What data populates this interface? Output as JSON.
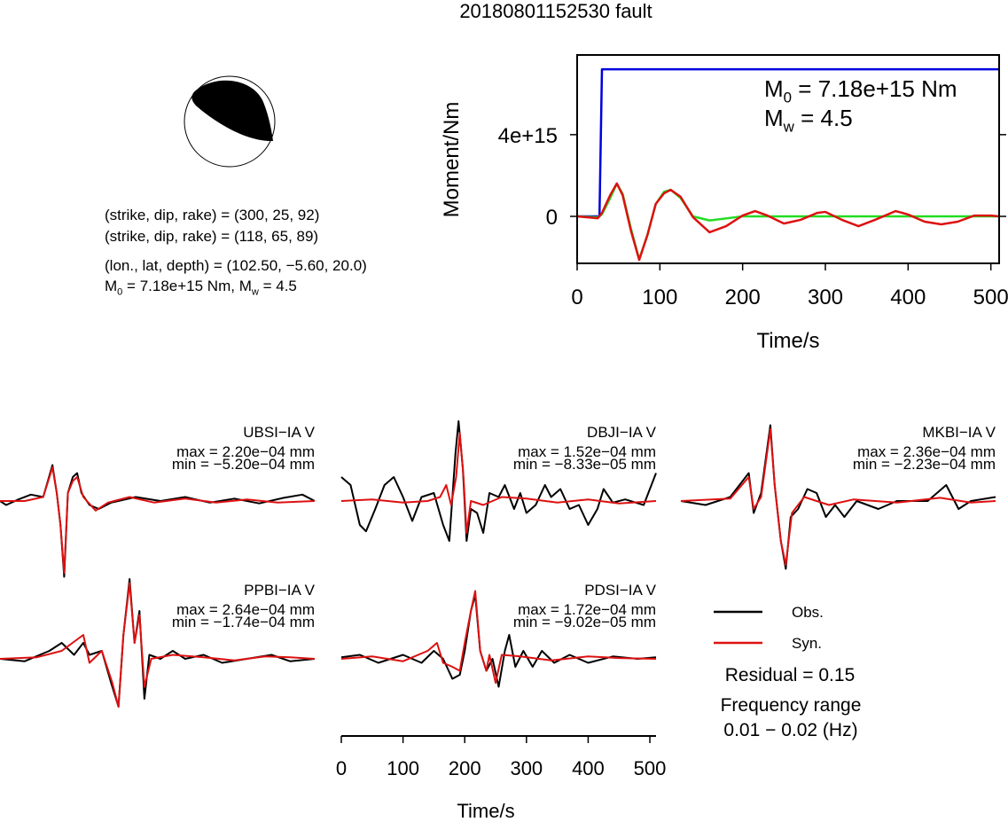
{
  "title": "20180801152530 fault",
  "mechanism": {
    "lines": [
      "(strike, dip, rake) = (300, 25, 92)",
      "(strike, dip, rake) = (118, 65, 89)",
      "(lon., lat, depth) = (102.50, −5.60, 20.0)"
    ],
    "moment_line": [
      {
        "base": "M",
        "sub": "0",
        "text": " = 7.18e+15 Nm, "
      },
      {
        "base": "M",
        "sub": "w",
        "text": " = 4.5"
      }
    ]
  },
  "chart_data": [
    {
      "type": "line",
      "ylabel": "Moment/Nm",
      "xlabel": "Time/s",
      "xlim": [
        0,
        510
      ],
      "xticks": [
        0,
        100,
        200,
        300,
        400,
        500
      ],
      "ylim": [
        -2300000000000000.0,
        7900000000000000.0
      ],
      "yticks": [
        {
          "value": 0,
          "label": "0"
        },
        {
          "value": 4000000000000000.0,
          "label": "4e+15"
        }
      ],
      "annotations": [
        {
          "base": "M",
          "sub": "0",
          "text": " = 7.18e+15 Nm"
        },
        {
          "base": "M",
          "sub": "w",
          "text": " = 4.5"
        }
      ],
      "series": [
        {
          "color": "#0000dd",
          "x": [
            0,
            27,
            30,
            510
          ],
          "values": [
            0,
            0,
            7200000000000000.0,
            7200000000000000.0
          ]
        },
        {
          "color": "#22dd22",
          "x": [
            0,
            25,
            30,
            40,
            48,
            55,
            65,
            75,
            85,
            95,
            105,
            113,
            125,
            140,
            160,
            180,
            200,
            250,
            510
          ],
          "values": [
            0,
            -50000000000000.0,
            100000000000000.0,
            900000000000000.0,
            1600000000000000.0,
            1100000000000000.0,
            -600000000000000.0,
            -2100000000000000.0,
            -900000000000000.0,
            600000000000000.0,
            1200000000000000.0,
            1300000000000000.0,
            900000000000000.0,
            0,
            -200000000000000.0,
            -100000000000000.0,
            0,
            0,
            0
          ]
        },
        {
          "color": "#dd1111",
          "x": [
            0,
            25,
            30,
            40,
            48,
            55,
            65,
            75,
            85,
            95,
            105,
            113,
            125,
            140,
            160,
            180,
            200,
            215,
            230,
            250,
            270,
            290,
            300,
            320,
            340,
            360,
            385,
            400,
            420,
            440,
            460,
            480,
            500,
            510
          ],
          "values": [
            0,
            -90000000000000.0,
            170000000000000.0,
            1040000000000000.0,
            1610000000000000.0,
            1040000000000000.0,
            -700000000000000.0,
            -2130000000000000.0,
            -910000000000000.0,
            610000000000000.0,
            1130000000000000.0,
            1300000000000000.0,
            960000000000000.0,
            -40000000000000.0,
            -780000000000000.0,
            -480000000000000.0,
            40000000000000.0,
            260000000000000.0,
            40000000000000.0,
            -350000000000000.0,
            -170000000000000.0,
            170000000000000.0,
            220000000000000.0,
            -170000000000000.0,
            -480000000000000.0,
            -170000000000000.0,
            260000000000000.0,
            90000000000000.0,
            -260000000000000.0,
            -390000000000000.0,
            -260000000000000.0,
            40000000000000.0,
            40000000000000.0,
            0
          ]
        }
      ]
    },
    {
      "type": "waveforms",
      "xlabel": "Time/s",
      "xlim": [
        0,
        510
      ],
      "xticks": [
        0,
        100,
        200,
        300,
        400,
        500
      ],
      "ylim": [
        -1,
        1
      ],
      "legend": [
        {
          "name": "Obs.",
          "color": "#000000"
        },
        {
          "name": "Syn.",
          "color": "#dd1111"
        }
      ],
      "residual": "Residual = 0.15",
      "frequency": [
        "Frequency range",
        "0.01 − 0.02 (Hz)"
      ],
      "stations": [
        {
          "name": "UBSI−IA V",
          "max": "max = 2.20e−04 mm",
          "min": "min = −5.20e−04 mm",
          "obs": {
            "x": [
              0,
              10,
              30,
              50,
              70,
              85,
              92,
              98,
              104,
              110,
              118,
              125,
              132,
              145,
              160,
              180,
              220,
              260,
              300,
              340,
              380,
              420,
              460,
              490,
              510
            ],
            "values": [
              0,
              -0.05,
              0.02,
              0.08,
              0.05,
              0.45,
              0.1,
              -0.3,
              -0.95,
              0.1,
              0.3,
              0.35,
              0.1,
              -0.05,
              -0.1,
              -0.02,
              0.05,
              0,
              0.05,
              -0.02,
              0.03,
              -0.03,
              0.04,
              0.08,
              0
            ]
          },
          "syn": {
            "x": [
              0,
              40,
              70,
              85,
              92,
              98,
              104,
              110,
              118,
              125,
              135,
              155,
              175,
              210,
              250,
              300,
              350,
              400,
              450,
              510
            ],
            "values": [
              0,
              0,
              0.05,
              0.42,
              0.1,
              -0.3,
              -0.9,
              0.1,
              0.25,
              0.3,
              0.05,
              -0.12,
              -0.02,
              0.05,
              -0.02,
              0.03,
              -0.02,
              0.02,
              -0.02,
              0
            ]
          }
        },
        {
          "name": "DBJI−IA V",
          "max": "max = 1.52e−04 mm",
          "min": "min = −8.33e−05 mm",
          "obs": {
            "x": [
              0,
              15,
              30,
              40,
              55,
              70,
              85,
              100,
              115,
              130,
              150,
              165,
              175,
              185,
              190,
              197,
              203,
              210,
              220,
              230,
              240,
              255,
              265,
              280,
              290,
              300,
              315,
              330,
              340,
              355,
              370,
              385,
              400,
              415,
              425,
              440,
              460,
              490,
              510
            ],
            "values": [
              0.3,
              0.2,
              -0.3,
              -0.38,
              -0.1,
              0.2,
              0.3,
              0.05,
              -0.25,
              0.05,
              0.1,
              -0.3,
              -0.5,
              0.6,
              1.0,
              0.4,
              -0.5,
              -0.1,
              -0.15,
              -0.4,
              0.1,
              0.05,
              0.2,
              -0.1,
              0.1,
              -0.15,
              -0.05,
              0.2,
              0.05,
              0.15,
              -0.1,
              -0.05,
              -0.3,
              -0.1,
              0.15,
              -0.02,
              0.02,
              -0.05,
              0.35
            ]
          },
          "syn": {
            "x": [
              0,
              50,
              100,
              140,
              160,
              170,
              178,
              186,
              192,
              198,
              203,
              210,
              230,
              260,
              300,
              350,
              400,
              450,
              510
            ],
            "values": [
              0,
              0.02,
              -0.02,
              0,
              0.05,
              0.2,
              -0.05,
              0.3,
              0.85,
              0.3,
              -0.4,
              0,
              -0.05,
              0.05,
              0.03,
              -0.02,
              0.02,
              -0.03,
              0
            ]
          }
        },
        {
          "name": "MKBI−IA V",
          "max": "max = 2.36e−04 mm",
          "min": "min = −2.23e−04 mm",
          "obs": {
            "x": [
              0,
              40,
              80,
              110,
              118,
              130,
              145,
              152,
              162,
              170,
              178,
              190,
              205,
              220,
              235,
              250,
              265,
              285,
              320,
              350,
              400,
              430,
              450,
              470,
              510
            ],
            "values": [
              0,
              -0.05,
              0.05,
              0.35,
              -0.15,
              0.1,
              0.95,
              0.2,
              -0.5,
              -0.85,
              -0.2,
              -0.1,
              0.15,
              0.1,
              -0.2,
              -0.05,
              -0.2,
              0,
              -0.1,
              0,
              0,
              0.2,
              -0.1,
              0,
              0.05
            ]
          },
          "syn": {
            "x": [
              0,
              80,
              110,
              118,
              130,
              145,
              152,
              162,
              170,
              180,
              200,
              240,
              280,
              350,
              420,
              470,
              510
            ],
            "values": [
              0,
              0.03,
              0.3,
              -0.1,
              0.05,
              0.9,
              0.2,
              -0.5,
              -0.8,
              -0.15,
              0.05,
              -0.05,
              0.02,
              -0.02,
              0.04,
              -0.02,
              0
            ]
          }
        },
        {
          "name": "PPBI−IA V",
          "max": "max = 2.64e−04 mm",
          "min": "min = −1.74e−04 mm",
          "obs": {
            "x": [
              0,
              40,
              80,
              100,
              120,
              135,
              145,
              165,
              180,
              192,
              200,
              210,
              218,
              226,
              234,
              242,
              260,
              280,
              300,
              330,
              360,
              400,
              440,
              470,
              510
            ],
            "values": [
              0,
              -0.03,
              0.1,
              0.2,
              0.05,
              0.2,
              0.05,
              0.1,
              -0.3,
              -0.6,
              0.3,
              1.0,
              0.2,
              0.6,
              -0.5,
              0.05,
              0,
              0.1,
              0,
              0.05,
              -0.05,
              0,
              0.05,
              -0.03,
              0
            ]
          },
          "syn": {
            "x": [
              0,
              60,
              100,
              135,
              145,
              165,
              182,
              192,
              200,
              210,
              218,
              226,
              234,
              245,
              280,
              330,
              380,
              430,
              470,
              510
            ],
            "values": [
              0,
              0.02,
              0.1,
              0.3,
              -0.05,
              0.1,
              -0.3,
              -0.6,
              0.3,
              0.95,
              0.2,
              0.55,
              -0.35,
              0,
              0.05,
              0.02,
              -0.02,
              0.03,
              0.02,
              0
            ]
          }
        },
        {
          "name": "PDSI−IA V",
          "max": "max = 1.72e−04 mm",
          "min": "min = −9.02e−05 mm",
          "obs": {
            "x": [
              0,
              30,
              60,
              100,
              130,
              150,
              165,
              180,
              192,
              200,
              210,
              217,
              225,
              235,
              245,
              255,
              265,
              272,
              282,
              295,
              310,
              325,
              345,
              370,
              400,
              440,
              480,
              510
            ],
            "values": [
              0.02,
              0.05,
              -0.05,
              0.05,
              -0.05,
              0.1,
              0,
              -0.25,
              -0.2,
              0.1,
              0.6,
              0.8,
              0.1,
              -0.15,
              0,
              -0.35,
              0.1,
              0.3,
              -0.1,
              0.1,
              -0.1,
              0.1,
              -0.05,
              0.05,
              -0.05,
              0.03,
              0,
              0.02
            ]
          },
          "syn": {
            "x": [
              0,
              50,
              100,
              140,
              155,
              165,
              180,
              192,
              200,
              210,
              217,
              225,
              235,
              240,
              250,
              260,
              290,
              340,
              400,
              450,
              510
            ],
            "values": [
              0,
              0.03,
              -0.03,
              0.1,
              0.2,
              -0.05,
              -0.1,
              -0.15,
              0.2,
              0.6,
              0.85,
              0.1,
              -0.15,
              0.05,
              -0.3,
              0.05,
              0.03,
              -0.02,
              0.03,
              0.01,
              0
            ]
          }
        }
      ]
    }
  ]
}
